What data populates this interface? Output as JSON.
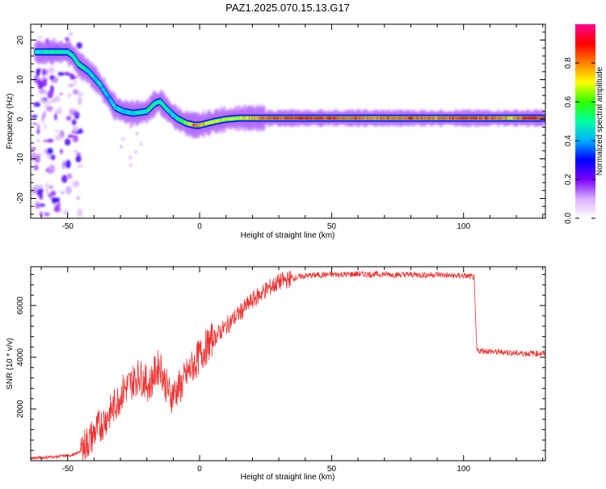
{
  "title": "PAZ1.2025.070.15.13.G17",
  "chart_data": [
    {
      "type": "heatmap",
      "xlabel": "Height of straight line (km)",
      "ylabel": "Frequency (Hz)",
      "xlim": [
        -64,
        131
      ],
      "ylim": [
        -25,
        24
      ],
      "xticks": [
        -50,
        0,
        50,
        100
      ],
      "yticks": [
        -20,
        -10,
        0,
        10,
        20
      ],
      "colorbar": {
        "label": "Normalized spectral amplitude",
        "range": [
          0,
          1
        ],
        "ticks": [
          0.0,
          0.2,
          0.4,
          0.6,
          0.8
        ],
        "colors": [
          "#ffffff",
          "#d8b0ff",
          "#7a00ff",
          "#0000ff",
          "#00b0ff",
          "#00ffa0",
          "#30ff00",
          "#ffff00",
          "#ff8000",
          "#ff0000",
          "#ff0090"
        ]
      },
      "ridge": {
        "x": [
          -61,
          -55,
          -50,
          -48,
          -46,
          -42,
          -38,
          -35,
          -32,
          -29,
          -25,
          -20,
          -17,
          -15,
          -13,
          -10,
          -8,
          -5,
          -2,
          0,
          3,
          6,
          10,
          15,
          20,
          25,
          30,
          40,
          50,
          60,
          70,
          80,
          90,
          100,
          110,
          118,
          125,
          131
        ],
        "y": [
          17,
          17,
          17,
          16,
          14,
          12,
          9,
          6,
          3,
          2,
          1.5,
          2,
          4,
          4.5,
          3,
          1,
          0,
          -1,
          -1.5,
          -1.5,
          -1,
          -0.5,
          0,
          0.3,
          0.3,
          0.3,
          0.3,
          0.3,
          0.3,
          0.3,
          0.3,
          0.3,
          0.3,
          0.3,
          0.3,
          0.3,
          0.3,
          0.3
        ],
        "amplitude": [
          0.45,
          0.5,
          0.5,
          0.45,
          0.5,
          0.45,
          0.45,
          0.4,
          0.45,
          0.45,
          0.45,
          0.5,
          0.55,
          0.5,
          0.45,
          0.45,
          0.5,
          0.65,
          0.85,
          0.8,
          0.7,
          0.7,
          0.65,
          0.7,
          0.75,
          0.85,
          0.85,
          0.88,
          0.86,
          0.82,
          0.8,
          0.85,
          0.8,
          0.88,
          0.85,
          0.75,
          0.88,
          0.88
        ]
      }
    },
    {
      "type": "line",
      "xlabel": "Height of straight line (km)",
      "ylabel": "SNR (10 * v/v)",
      "xlim": [
        -64,
        131
      ],
      "ylim": [
        0,
        7500
      ],
      "xticks": [
        -50,
        0,
        50,
        100
      ],
      "yticks": [
        2000,
        4000,
        6000
      ],
      "color": "#ee3333",
      "series": [
        {
          "x": [
            -64,
            -55,
            -50,
            -47,
            -45,
            -43,
            -41,
            -39,
            -37,
            -35,
            -33,
            -31,
            -29,
            -27,
            -25,
            -23,
            -21,
            -19,
            -17,
            -15,
            -13,
            -11,
            -9,
            -7,
            -5,
            -3,
            -1,
            1,
            3,
            5,
            8,
            11,
            14,
            17,
            20,
            25,
            30,
            35,
            40,
            45,
            50,
            55,
            60,
            65,
            70,
            75,
            80,
            85,
            90,
            95,
            100,
            104,
            104.5,
            105,
            108,
            112,
            116,
            120,
            125,
            131
          ],
          "y": [
            100,
            150,
            200,
            250,
            400,
            650,
            900,
            1200,
            1450,
            1700,
            2000,
            2350,
            2700,
            2900,
            3100,
            3300,
            3100,
            2900,
            3400,
            3700,
            3000,
            2500,
            2700,
            2900,
            3300,
            3600,
            3900,
            4200,
            4450,
            4700,
            5000,
            5300,
            5600,
            5900,
            6200,
            6600,
            6900,
            7050,
            7150,
            7180,
            7200,
            7200,
            7220,
            7200,
            7210,
            7190,
            7200,
            7180,
            7200,
            7150,
            7150,
            7100,
            5500,
            4250,
            4250,
            4200,
            4200,
            4150,
            4150,
            4150
          ]
        }
      ]
    }
  ]
}
